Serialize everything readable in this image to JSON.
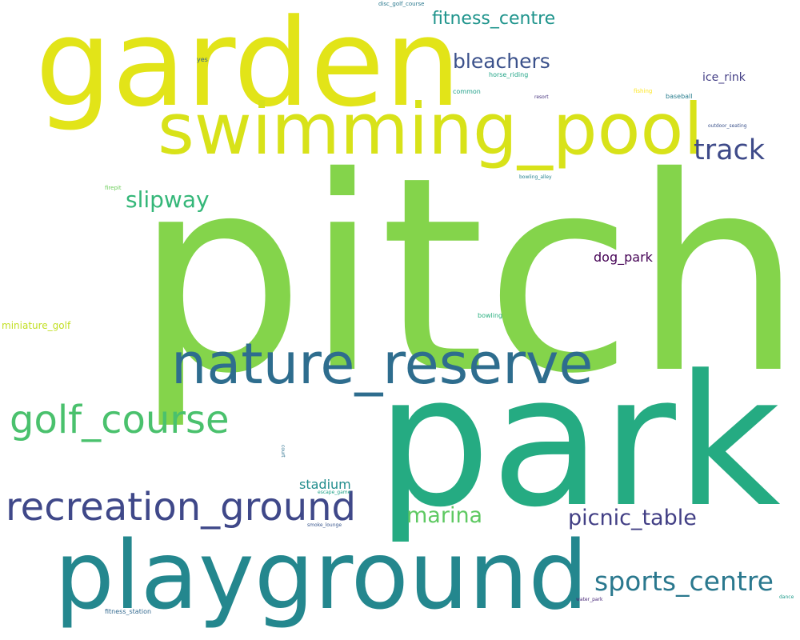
{
  "words": {
    "pitch": "pitch",
    "park": "park",
    "garden": "garden",
    "playground": "playground",
    "swimming_pool": "swimming_pool",
    "nature_reserve": "nature_reserve",
    "recreation_ground": "recreation_ground",
    "golf_course": "golf_course",
    "sports_centre": "sports_centre",
    "track": "track",
    "picnic_table": "picnic_table",
    "fitness_centre": "fitness_centre",
    "bleachers": "bleachers",
    "slipway": "slipway",
    "marina": "marina",
    "stadium": "stadium",
    "dog_park": "dog_park",
    "ice_rink": "ice_rink",
    "miniature_golf": "miniature_golf",
    "disc_golf_course": "disc_golf_course",
    "yes": "yes",
    "horse_riding": "horse_riding",
    "common": "common",
    "resort": "resort",
    "fishing": "fishing",
    "baseball": "baseball",
    "outdoor_seating": "outdoor_seating",
    "bowling_alley": "bowling_alley",
    "firepit": "firepit",
    "bowling": "bowling",
    "court": "court",
    "escape_game": "escape_game",
    "smoke_lounge": "smoke_lounge",
    "fitness_station": "fitness_station",
    "water_park": "water_park",
    "dance": "dance"
  },
  "colors": {
    "pitch": "#84d44b",
    "park": "#25ab82",
    "garden": "#e2e418",
    "playground": "#24878e",
    "swimming_pool": "#d8e219",
    "nature_reserve": "#2e6d8e",
    "recreation_ground": "#3f4889",
    "golf_course": "#4ac16d",
    "sports_centre": "#2a788e",
    "track": "#3e4a89",
    "picnic_table": "#423f85",
    "fitness_centre": "#1f948c",
    "bleachers": "#3b518b",
    "slipway": "#35b779",
    "marina": "#5ec962",
    "stadium": "#228d8d",
    "dog_park": "#440154",
    "ice_rink": "#433e85",
    "miniature_golf": "#c2df23",
    "disc_golf_course": "#2a788e",
    "yes": "#33638d",
    "horse_riding": "#20a486",
    "common": "#1f9f88",
    "resort": "#46337e",
    "fishing": "#fde725",
    "baseball": "#287d8e",
    "outdoor_seating": "#3b528b",
    "bowling_alley": "#26828e",
    "firepit": "#6ccd5a",
    "bowling": "#29af7f",
    "court": "#2c718e",
    "escape_game": "#1fa187",
    "smoke_lounge": "#39568c",
    "fitness_station": "#31688e",
    "water_park": "#482878",
    "dance": "#1e9b8a"
  }
}
